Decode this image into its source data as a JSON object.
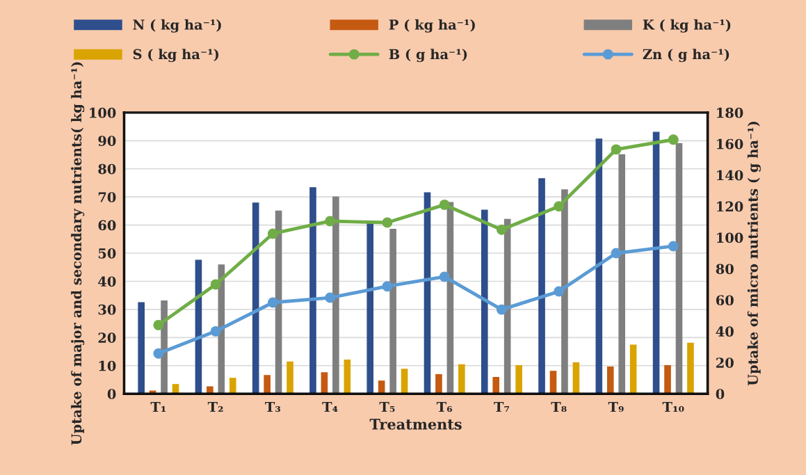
{
  "chart_data": {
    "type": "bar",
    "xlabel": "Treatments",
    "ylabel": "Uptake of major and secondary nutrients( kg ha⁻¹)",
    "y2label": "Uptake of micro nutrients ( g ha⁻¹)",
    "categories": [
      "T₁",
      "T₂",
      "T₃",
      "T₄",
      "T₅",
      "T₆",
      "T₇",
      "T₈",
      "T₉",
      "T₁₀"
    ],
    "series": [
      {
        "name": "N ( kg ha⁻¹)",
        "color": "#2e4e8c",
        "values": [
          32.4,
          47.5,
          67.8,
          73.3,
          60.7,
          71.5,
          65.3,
          76.5,
          90.6,
          93
        ]
      },
      {
        "name": "P ( kg ha⁻¹)",
        "color": "#c55a11",
        "values": [
          1,
          2.5,
          6.5,
          7.5,
          4.5,
          6.8,
          5.8,
          8,
          9.5,
          10
        ]
      },
      {
        "name": "K ( kg ha⁻¹)",
        "color": "#7f7f7f",
        "values": [
          33,
          45.8,
          65,
          70,
          58.5,
          68,
          62,
          72.5,
          85,
          89
        ]
      },
      {
        "name": "S ( kg ha⁻¹)",
        "color": "#d9a400",
        "values": [
          3.3,
          5.5,
          11.3,
          12,
          8.7,
          10.3,
          10,
          11,
          17.3,
          18
        ]
      },
      {
        "name": "B ( g ha⁻¹)",
        "color": "#70ad47",
        "type": "line",
        "axis": "y2",
        "values": [
          44,
          70,
          102.5,
          110.5,
          109.6,
          121,
          105,
          120,
          156.4,
          162.7
        ]
      },
      {
        "name": "Zn ( g ha⁻¹)",
        "color": "#5b9bd5",
        "type": "line",
        "axis": "y2",
        "values": [
          25.8,
          40,
          58.4,
          61.5,
          68.8,
          74.9,
          53.9,
          65.5,
          90,
          94.5
        ]
      }
    ],
    "ylim": [
      0,
      100
    ],
    "yticks": [
      0,
      10,
      20,
      30,
      40,
      50,
      60,
      70,
      80,
      90,
      100
    ],
    "y2lim": [
      0,
      180
    ],
    "y2ticks": [
      0,
      20,
      40,
      60,
      80,
      100,
      120,
      140,
      160,
      180
    ],
    "grid": "y",
    "legend": "top",
    "marker": "circle"
  }
}
